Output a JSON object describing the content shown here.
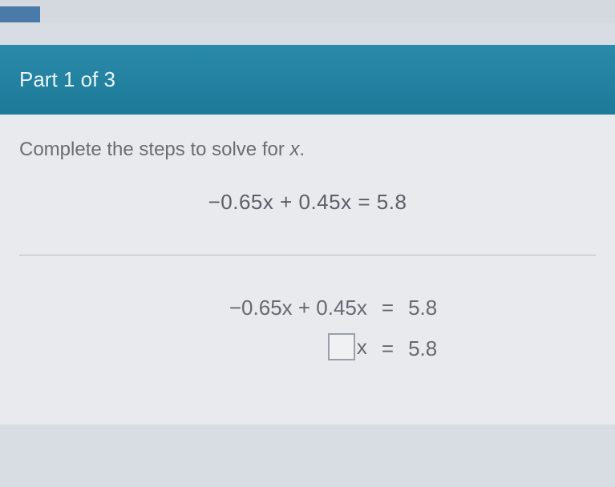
{
  "header": {
    "title": "Part 1 of 3"
  },
  "instruction": {
    "text_before": "Complete the steps to solve for ",
    "variable": "x",
    "text_after": "."
  },
  "equation": {
    "line1_left": "−0.65x + 0.45x",
    "line1_right": "5.8"
  },
  "solution": {
    "line1_left": "−0.65x + 0.45x",
    "line1_right": "5.8",
    "line2_var": "x",
    "line2_right": "5.8"
  },
  "colors": {
    "header_bg": "#2088a8",
    "body_bg": "#d8dde3",
    "content_bg": "#e8eaed",
    "text_muted": "#6a6e74",
    "equation_text": "#5b6068",
    "box_border": "#9aa0a8"
  }
}
